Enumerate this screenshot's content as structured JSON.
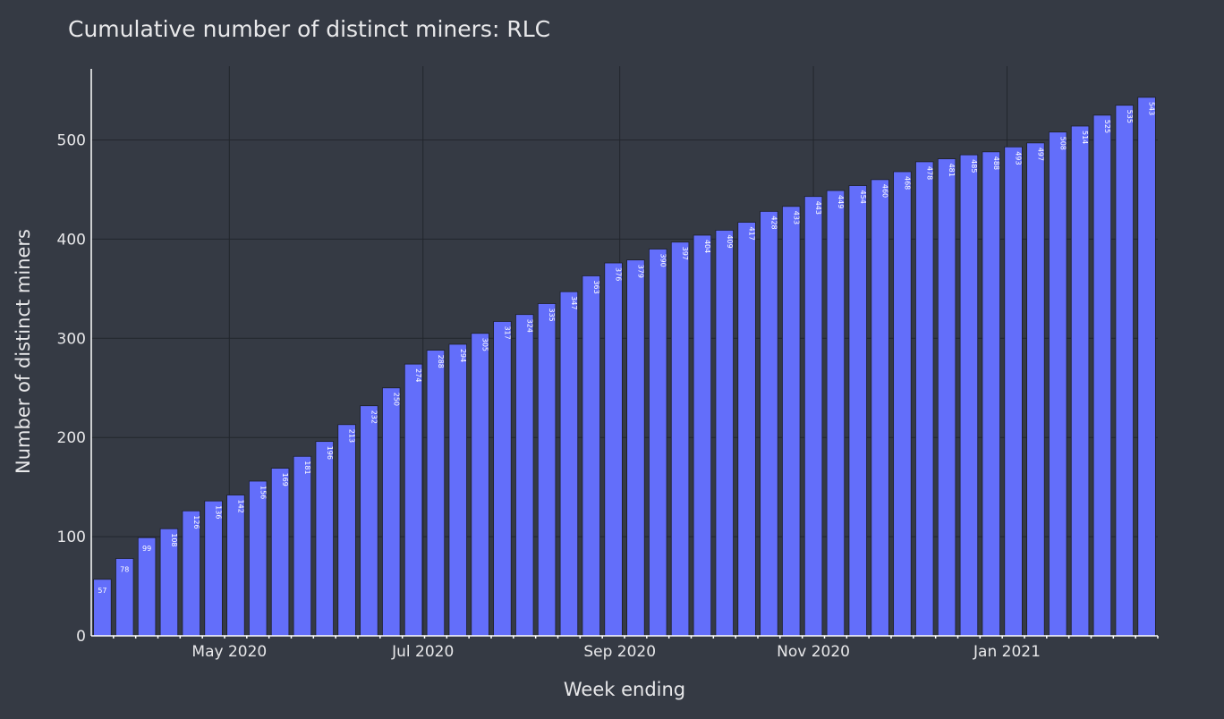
{
  "chart_data": {
    "type": "bar",
    "title": "Cumulative number of distinct miners: RLC",
    "xlabel": "Week ending",
    "ylabel": "Number of distinct miners",
    "ylim": [
      0,
      560
    ],
    "yticks": [
      0,
      100,
      200,
      300,
      400,
      500
    ],
    "x_start": "2020-03-22",
    "x_step_days": 7,
    "xticks": [
      {
        "date": "2020-05-01",
        "label": "May 2020"
      },
      {
        "date": "2020-07-01",
        "label": "Jul 2020"
      },
      {
        "date": "2020-09-01",
        "label": "Sep 2020"
      },
      {
        "date": "2020-11-01",
        "label": "Nov 2020"
      },
      {
        "date": "2021-01-01",
        "label": "Jan 2021"
      }
    ],
    "values": [
      57,
      78,
      99,
      108,
      126,
      136,
      142,
      156,
      169,
      181,
      196,
      213,
      232,
      250,
      274,
      288,
      294,
      305,
      317,
      324,
      335,
      347,
      363,
      376,
      379,
      390,
      397,
      404,
      409,
      417,
      428,
      433,
      443,
      449,
      454,
      460,
      468,
      478,
      481,
      485,
      488,
      493,
      497,
      508,
      514,
      525,
      535,
      543
    ],
    "grid": true,
    "colors": {
      "bar": "#636efa",
      "background": "#353a44",
      "grid": "#22262d",
      "text": "#e8e8ea"
    }
  }
}
